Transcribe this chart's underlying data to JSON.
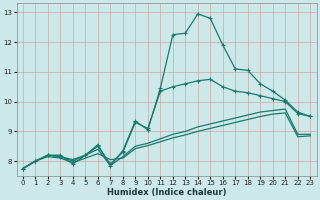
{
  "xlabel": "Humidex (Indice chaleur)",
  "bg_color": "#cce8e8",
  "grid_color": "#b0d4d4",
  "line_color": "#1a7a6e",
  "xlim": [
    -0.5,
    23.5
  ],
  "ylim": [
    7.5,
    13.3
  ],
  "xticks": [
    0,
    1,
    2,
    3,
    4,
    5,
    6,
    7,
    8,
    9,
    10,
    11,
    12,
    13,
    14,
    15,
    16,
    17,
    18,
    19,
    20,
    21,
    22,
    23
  ],
  "yticks": [
    8,
    9,
    10,
    11,
    12,
    13
  ],
  "line1_x": [
    0,
    1,
    2,
    3,
    4,
    5,
    6,
    7,
    8,
    9,
    10,
    11,
    12,
    13,
    14,
    15,
    16,
    17,
    18,
    19,
    20,
    21,
    22,
    23
  ],
  "line1_y": [
    7.75,
    8.0,
    8.2,
    8.2,
    7.9,
    8.2,
    8.55,
    7.85,
    8.35,
    9.35,
    9.05,
    10.45,
    12.25,
    12.3,
    12.95,
    12.8,
    11.9,
    11.1,
    11.05,
    10.6,
    10.35,
    10.05,
    9.65,
    9.5
  ],
  "line2_x": [
    0,
    1,
    2,
    3,
    4,
    5,
    6,
    7,
    8,
    9,
    10,
    11,
    12,
    13,
    14,
    15,
    16,
    17,
    18,
    19,
    20,
    21,
    22,
    23
  ],
  "line2_y": [
    7.75,
    8.0,
    8.2,
    8.15,
    8.05,
    8.2,
    8.5,
    7.9,
    8.3,
    9.3,
    9.1,
    10.35,
    10.5,
    10.6,
    10.7,
    10.75,
    10.5,
    10.35,
    10.3,
    10.2,
    10.1,
    10.0,
    9.6,
    9.5
  ],
  "line3_x": [
    0,
    1,
    2,
    3,
    4,
    5,
    6,
    7,
    8,
    9,
    10,
    11,
    12,
    13,
    14,
    15,
    16,
    17,
    18,
    19,
    20,
    21,
    22,
    23
  ],
  "line3_y": [
    7.75,
    8.0,
    8.2,
    8.15,
    8.0,
    8.2,
    8.4,
    7.85,
    8.15,
    8.5,
    8.6,
    8.75,
    8.9,
    9.0,
    9.15,
    9.25,
    9.35,
    9.45,
    9.55,
    9.65,
    9.7,
    9.75,
    8.9,
    8.9
  ],
  "line4_x": [
    0,
    1,
    2,
    3,
    4,
    5,
    6,
    7,
    8,
    9,
    10,
    11,
    12,
    13,
    14,
    15,
    16,
    17,
    18,
    19,
    20,
    21,
    22,
    23
  ],
  "line4_y": [
    7.75,
    8.0,
    8.15,
    8.1,
    7.95,
    8.1,
    8.25,
    8.05,
    8.1,
    8.42,
    8.52,
    8.65,
    8.78,
    8.88,
    9.0,
    9.1,
    9.2,
    9.3,
    9.4,
    9.5,
    9.58,
    9.62,
    8.82,
    8.85
  ]
}
